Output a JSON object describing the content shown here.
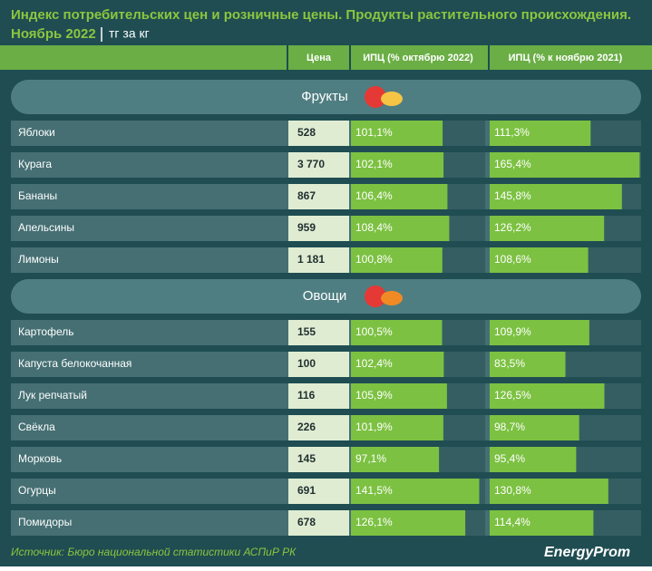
{
  "header": {
    "title": "Индекс потребительских цен и розничные цены. Продукты растительного происхождения.",
    "period": "Ноябрь 2022",
    "unit": "тг за кг"
  },
  "columns": [
    "Цена",
    "ИПЦ (% октябрю 2022)",
    "ИПЦ (% к ноябрю 2021)"
  ],
  "groups": [
    {
      "name": "Фрукты",
      "rows": [
        {
          "name": "Яблоки",
          "price": "528",
          "cpi_oct": 101.1,
          "cpi_oct_label": "101,1%",
          "cpi_nov": 111.3,
          "cpi_nov_label": "111,3%"
        },
        {
          "name": "Курага",
          "price": "3 770",
          "cpi_oct": 102.1,
          "cpi_oct_label": "102,1%",
          "cpi_nov": 165.4,
          "cpi_nov_label": "165,4%"
        },
        {
          "name": "Бананы",
          "price": "867",
          "cpi_oct": 106.4,
          "cpi_oct_label": "106,4%",
          "cpi_nov": 145.8,
          "cpi_nov_label": "145,8%"
        },
        {
          "name": "Апельсины",
          "price": "959",
          "cpi_oct": 108.4,
          "cpi_oct_label": "108,4%",
          "cpi_nov": 126.2,
          "cpi_nov_label": "126,2%"
        },
        {
          "name": "Лимоны",
          "price": "1 181",
          "cpi_oct": 100.8,
          "cpi_oct_label": "100,8%",
          "cpi_nov": 108.6,
          "cpi_nov_label": "108,6%"
        }
      ]
    },
    {
      "name": "Овощи",
      "rows": [
        {
          "name": "Картофель",
          "price": "155",
          "cpi_oct": 100.5,
          "cpi_oct_label": "100,5%",
          "cpi_nov": 109.9,
          "cpi_nov_label": "109,9%"
        },
        {
          "name": "Капуста белокочанная",
          "price": "100",
          "cpi_oct": 102.4,
          "cpi_oct_label": "102,4%",
          "cpi_nov": 83.5,
          "cpi_nov_label": "83,5%"
        },
        {
          "name": "Лук репчатый",
          "price": "116",
          "cpi_oct": 105.9,
          "cpi_oct_label": "105,9%",
          "cpi_nov": 126.5,
          "cpi_nov_label": "126,5%"
        },
        {
          "name": "Свёкла",
          "price": "226",
          "cpi_oct": 101.9,
          "cpi_oct_label": "101,9%",
          "cpi_nov": 98.7,
          "cpi_nov_label": "98,7%"
        },
        {
          "name": "Морковь",
          "price": "145",
          "cpi_oct": 97.1,
          "cpi_oct_label": "97,1%",
          "cpi_nov": 95.4,
          "cpi_nov_label": "95,4%"
        },
        {
          "name": "Огурцы",
          "price": "691",
          "cpi_oct": 141.5,
          "cpi_oct_label": "141,5%",
          "cpi_nov": 130.8,
          "cpi_nov_label": "130,8%"
        },
        {
          "name": "Помидоры",
          "price": "678",
          "cpi_oct": 126.1,
          "cpi_oct_label": "126,1%",
          "cpi_nov": 114.4,
          "cpi_nov_label": "114,4%"
        }
      ]
    }
  ],
  "footer": {
    "source": "Источник: Бюро национальной статистики АСПиР РК",
    "logo": "EnergyProm"
  }
}
